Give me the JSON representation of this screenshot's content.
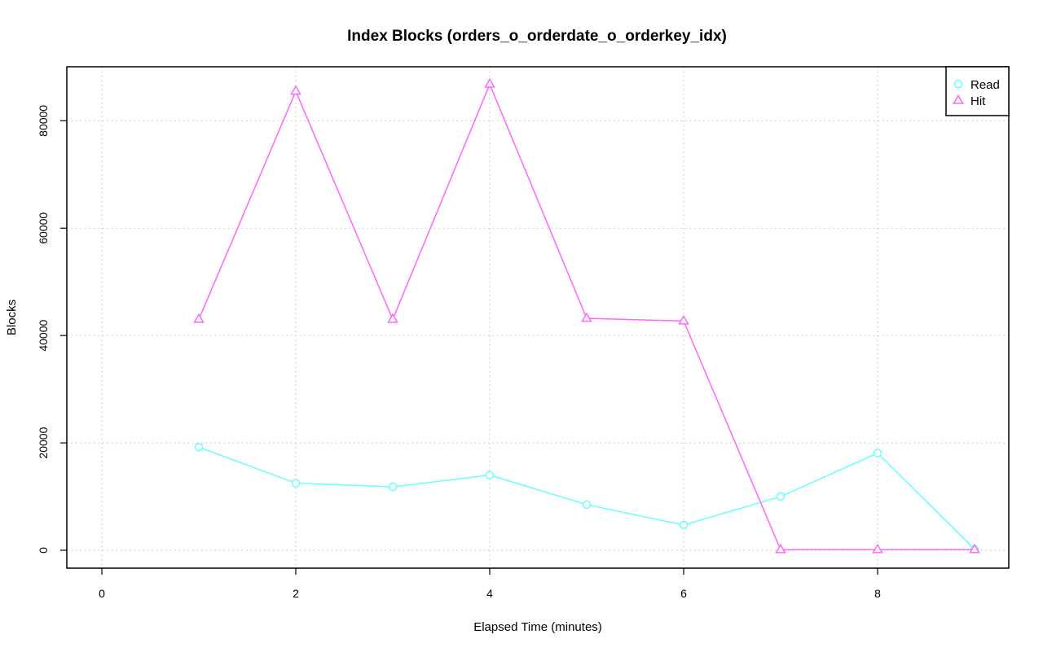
{
  "chart_data": {
    "type": "line",
    "title": "Index Blocks (orders_o_orderdate_o_orderkey_idx)",
    "xlabel": "Elapsed Time (minutes)",
    "ylabel": "Blocks",
    "xlim": [
      0,
      9
    ],
    "ylim": [
      0,
      86500
    ],
    "x_ticks": [
      0,
      2,
      4,
      6,
      8
    ],
    "x_tick_labels": [
      "0",
      "2",
      "4",
      "6",
      "8"
    ],
    "y_ticks": [
      0,
      20000,
      40000,
      60000,
      80000
    ],
    "y_tick_labels": [
      "0",
      "20000",
      "40000",
      "60000",
      "80000"
    ],
    "grid": true,
    "legend_position": "top-right",
    "x": [
      1,
      2,
      3,
      4,
      5,
      6,
      7,
      8,
      9
    ],
    "series": [
      {
        "name": "Read",
        "color": "#66ffff",
        "marker": "circle",
        "values": [
          19200,
          12500,
          11800,
          14000,
          8500,
          4700,
          10000,
          18100,
          200
        ]
      },
      {
        "name": "Hit",
        "color": "#ff66ff",
        "marker": "triangle",
        "values": [
          43000,
          85500,
          43000,
          86800,
          43200,
          42700,
          100,
          100,
          100
        ]
      }
    ]
  }
}
